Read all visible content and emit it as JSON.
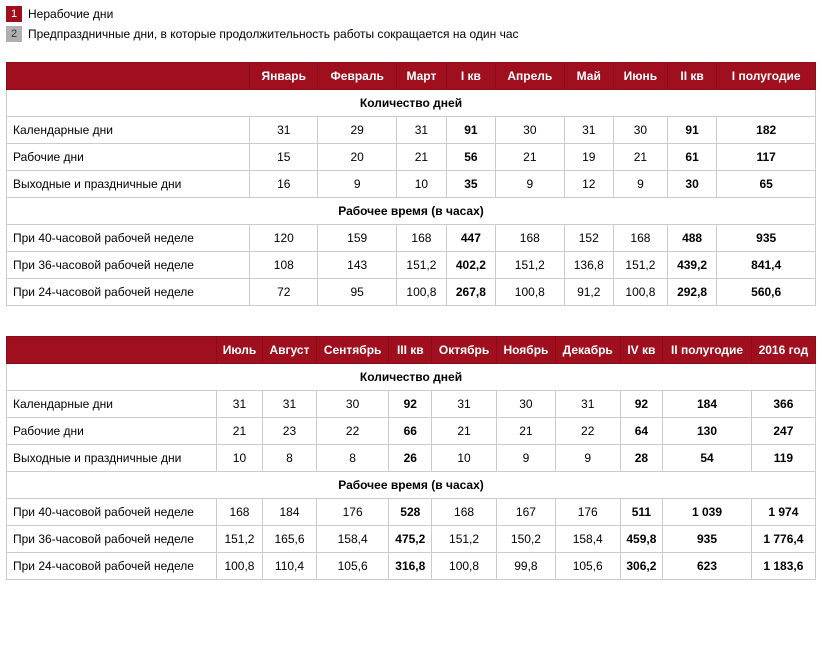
{
  "legend": {
    "item1": {
      "num": "1",
      "text": "Нерабочие дни",
      "color": "#a00f1d"
    },
    "item2": {
      "num": "2",
      "text": "Предпраздничные дни, в которые продолжительность работы сокращается на один час",
      "color": "#b0b0b0"
    }
  },
  "table1": {
    "headers": [
      "",
      "Январь",
      "Февраль",
      "Март",
      "I кв",
      "Апрель",
      "Май",
      "Июнь",
      "II кв",
      "I полугодие"
    ],
    "bold_cols": [
      4,
      8,
      9
    ],
    "section1": {
      "title": "Количество дней",
      "rows": [
        {
          "label": "Календарные дни",
          "values": [
            "31",
            "29",
            "31",
            "91",
            "30",
            "31",
            "30",
            "91",
            "182"
          ]
        },
        {
          "label": "Рабочие дни",
          "values": [
            "15",
            "20",
            "21",
            "56",
            "21",
            "19",
            "21",
            "61",
            "117"
          ]
        },
        {
          "label": "Выходные и праздничные дни",
          "values": [
            "16",
            "9",
            "10",
            "35",
            "9",
            "12",
            "9",
            "30",
            "65"
          ]
        }
      ]
    },
    "section2": {
      "title": "Рабочее время (в часах)",
      "rows": [
        {
          "label": "При 40-часовой рабочей неделе",
          "values": [
            "120",
            "159",
            "168",
            "447",
            "168",
            "152",
            "168",
            "488",
            "935"
          ]
        },
        {
          "label": "При 36-часовой рабочей неделе",
          "values": [
            "108",
            "143",
            "151,2",
            "402,2",
            "151,2",
            "136,8",
            "151,2",
            "439,2",
            "841,4"
          ]
        },
        {
          "label": "При 24-часовой рабочей неделе",
          "values": [
            "72",
            "95",
            "100,8",
            "267,8",
            "100,8",
            "91,2",
            "100,8",
            "292,8",
            "560,6"
          ]
        }
      ]
    }
  },
  "table2": {
    "headers": [
      "",
      "Июль",
      "Август",
      "Сентябрь",
      "III кв",
      "Октябрь",
      "Ноябрь",
      "Декабрь",
      "IV кв",
      "II полугодие",
      "2016 год"
    ],
    "bold_cols": [
      4,
      8,
      9,
      10
    ],
    "section1": {
      "title": "Количество дней",
      "rows": [
        {
          "label": "Календарные дни",
          "values": [
            "31",
            "31",
            "30",
            "92",
            "31",
            "30",
            "31",
            "92",
            "184",
            "366"
          ]
        },
        {
          "label": "Рабочие дни",
          "values": [
            "21",
            "23",
            "22",
            "66",
            "21",
            "21",
            "22",
            "64",
            "130",
            "247"
          ]
        },
        {
          "label": "Выходные и праздничные дни",
          "values": [
            "10",
            "8",
            "8",
            "26",
            "10",
            "9",
            "9",
            "28",
            "54",
            "119"
          ]
        }
      ]
    },
    "section2": {
      "title": "Рабочее время (в часах)",
      "rows": [
        {
          "label": "При 40-часовой рабочей неделе",
          "values": [
            "168",
            "184",
            "176",
            "528",
            "168",
            "167",
            "176",
            "511",
            "1 039",
            "1 974"
          ]
        },
        {
          "label": "При 36-часовой рабочей неделе",
          "values": [
            "151,2",
            "165,6",
            "158,4",
            "475,2",
            "151,2",
            "150,2",
            "158,4",
            "459,8",
            "935",
            "1 776,4"
          ]
        },
        {
          "label": "При 24-часовой рабочей неделе",
          "values": [
            "100,8",
            "110,4",
            "105,6",
            "316,8",
            "100,8",
            "99,8",
            "105,6",
            "306,2",
            "623",
            "1 183,6"
          ]
        }
      ]
    }
  }
}
